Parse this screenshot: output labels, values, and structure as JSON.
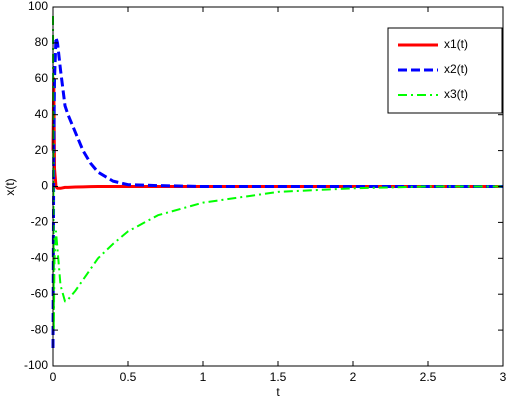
{
  "chart_data": {
    "type": "line",
    "xlabel": "t",
    "ylabel": "x(t)",
    "x": [
      0,
      0.005,
      0.01,
      0.02,
      0.03,
      0.05,
      0.08,
      0.1,
      0.15,
      0.2,
      0.25,
      0.3,
      0.4,
      0.5,
      0.7,
      1,
      1.5,
      2,
      2.5,
      3
    ],
    "series": [
      {
        "name": "x1(t)",
        "color": "#ff0000",
        "style": "solid",
        "values": [
          20,
          60,
          10,
          0,
          -1,
          -1,
          -0.5,
          -0.5,
          -0.3,
          -0.2,
          -0.1,
          0,
          0,
          0,
          0,
          0,
          0,
          0,
          0,
          0
        ]
      },
      {
        "name": "x2(t)",
        "color": "#0000ff",
        "style": "dashed",
        "values": [
          -90,
          20,
          60,
          83,
          80,
          65,
          45,
          40,
          30,
          20,
          13,
          8,
          3,
          1,
          0.5,
          0,
          0,
          0,
          0,
          0
        ]
      },
      {
        "name": "x3(t)",
        "color": "#00ff00",
        "style": "dashdot",
        "values": [
          95,
          -80,
          -40,
          -25,
          -35,
          -55,
          -64,
          -63,
          -58,
          -52,
          -46,
          -40,
          -32,
          -25,
          -16,
          -9,
          -3,
          -1,
          0,
          0
        ]
      }
    ],
    "xlim": [
      0,
      3
    ],
    "xticks": [
      0,
      0.5,
      1,
      1.5,
      2,
      2.5,
      3
    ],
    "ylim": [
      -100,
      100
    ],
    "yticks": [
      -100,
      -80,
      -60,
      -40,
      -20,
      0,
      20,
      40,
      60,
      80,
      100
    ],
    "grid": false,
    "legend": "top-right"
  }
}
